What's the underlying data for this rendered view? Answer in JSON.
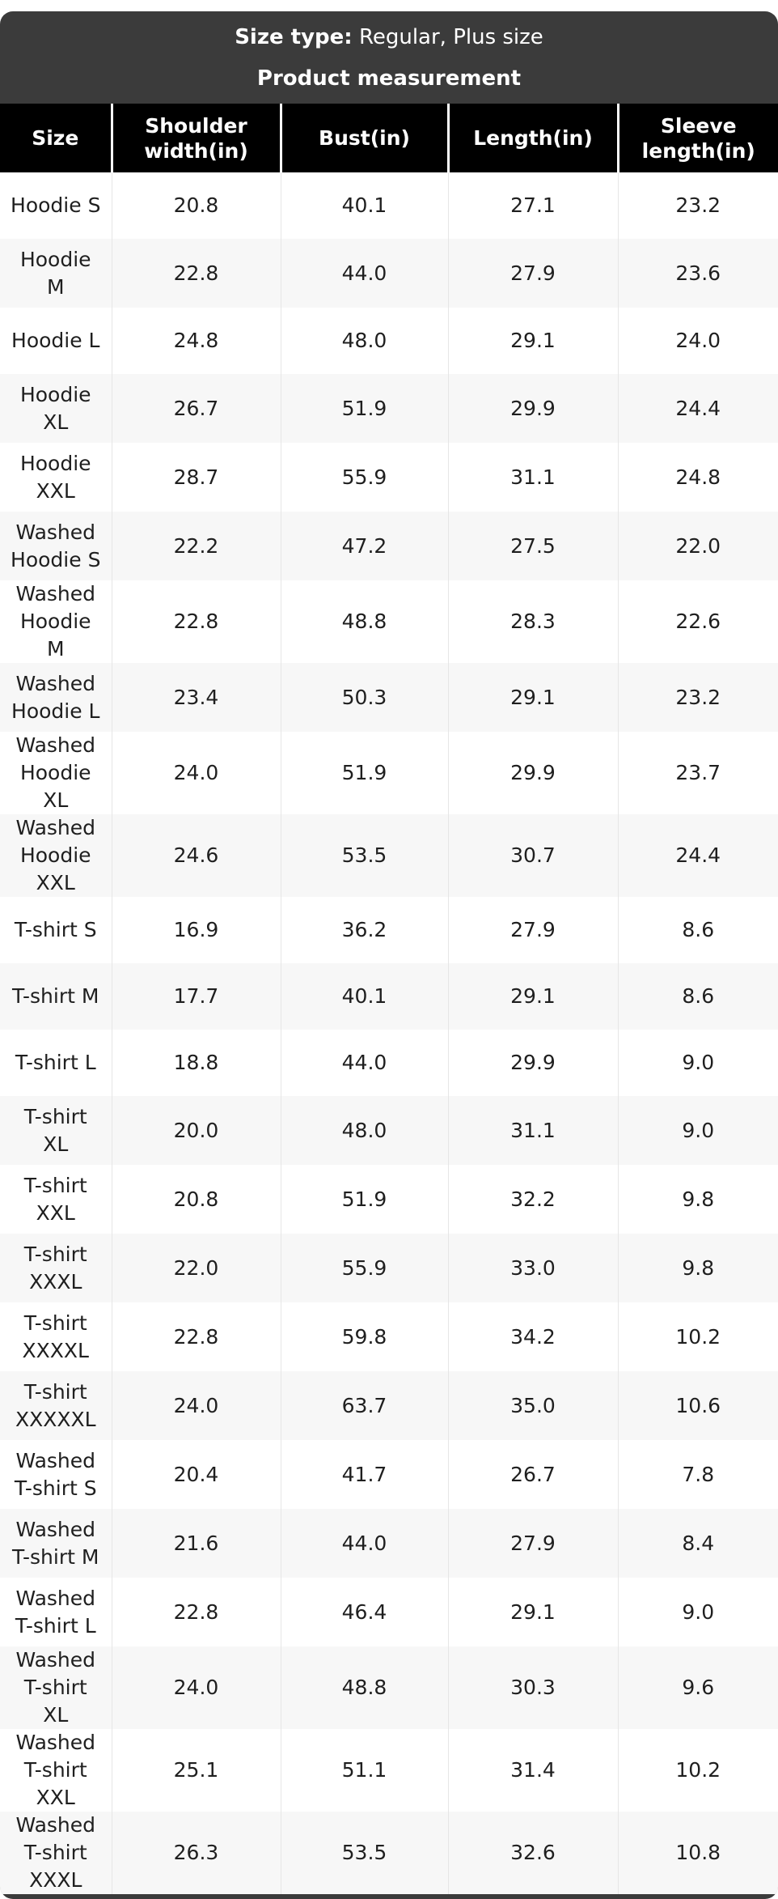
{
  "size_type": {
    "label": "Size type:",
    "value": "Regular, Plus size"
  },
  "title": "Product measurement",
  "colors": {
    "container_bg": "#3b3b3b",
    "header_bg": "#000000",
    "header_text": "#ffffff",
    "row_alt": "#f7f7f7",
    "divider": "#e6e6e6",
    "body_text": "#1f1f1f"
  },
  "table": {
    "columns": [
      "Size",
      "Shoulder\nwidth(in)",
      "Bust(in)",
      "Length(in)",
      "Sleeve\nlength(in)"
    ],
    "rows": [
      {
        "size": "Hoodie S",
        "values": [
          "20.8",
          "40.1",
          "27.1",
          "23.2"
        ]
      },
      {
        "size": "Hoodie\nM",
        "values": [
          "22.8",
          "44.0",
          "27.9",
          "23.6"
        ]
      },
      {
        "size": "Hoodie L",
        "values": [
          "24.8",
          "48.0",
          "29.1",
          "24.0"
        ]
      },
      {
        "size": "Hoodie\nXL",
        "values": [
          "26.7",
          "51.9",
          "29.9",
          "24.4"
        ]
      },
      {
        "size": "Hoodie\nXXL",
        "values": [
          "28.7",
          "55.9",
          "31.1",
          "24.8"
        ]
      },
      {
        "size": "Washed\nHoodie S",
        "values": [
          "22.2",
          "47.2",
          "27.5",
          "22.0"
        ]
      },
      {
        "size": "Washed\nHoodie\nM",
        "values": [
          "22.8",
          "48.8",
          "28.3",
          "22.6"
        ]
      },
      {
        "size": "Washed\nHoodie L",
        "values": [
          "23.4",
          "50.3",
          "29.1",
          "23.2"
        ]
      },
      {
        "size": "Washed\nHoodie\nXL",
        "values": [
          "24.0",
          "51.9",
          "29.9",
          "23.7"
        ]
      },
      {
        "size": "Washed\nHoodie\nXXL",
        "values": [
          "24.6",
          "53.5",
          "30.7",
          "24.4"
        ]
      },
      {
        "size": "T-shirt S",
        "values": [
          "16.9",
          "36.2",
          "27.9",
          "8.6"
        ]
      },
      {
        "size": "T-shirt M",
        "values": [
          "17.7",
          "40.1",
          "29.1",
          "8.6"
        ]
      },
      {
        "size": "T-shirt L",
        "values": [
          "18.8",
          "44.0",
          "29.9",
          "9.0"
        ]
      },
      {
        "size": "T-shirt\nXL",
        "values": [
          "20.0",
          "48.0",
          "31.1",
          "9.0"
        ]
      },
      {
        "size": "T-shirt\nXXL",
        "values": [
          "20.8",
          "51.9",
          "32.2",
          "9.8"
        ]
      },
      {
        "size": "T-shirt\nXXXL",
        "values": [
          "22.0",
          "55.9",
          "33.0",
          "9.8"
        ]
      },
      {
        "size": "T-shirt\nXXXXL",
        "values": [
          "22.8",
          "59.8",
          "34.2",
          "10.2"
        ]
      },
      {
        "size": "T-shirt\nXXXXXL",
        "values": [
          "24.0",
          "63.7",
          "35.0",
          "10.6"
        ]
      },
      {
        "size": "Washed\nT-shirt S",
        "values": [
          "20.4",
          "41.7",
          "26.7",
          "7.8"
        ]
      },
      {
        "size": "Washed\nT-shirt M",
        "values": [
          "21.6",
          "44.0",
          "27.9",
          "8.4"
        ]
      },
      {
        "size": "Washed\nT-shirt L",
        "values": [
          "22.8",
          "46.4",
          "29.1",
          "9.0"
        ]
      },
      {
        "size": "Washed\nT-shirt\nXL",
        "values": [
          "24.0",
          "48.8",
          "30.3",
          "9.6"
        ]
      },
      {
        "size": "Washed\nT-shirt\nXXL",
        "values": [
          "25.1",
          "51.1",
          "31.4",
          "10.2"
        ]
      },
      {
        "size": "Washed\nT-shirt\nXXXL",
        "values": [
          "26.3",
          "53.5",
          "32.6",
          "10.8"
        ]
      }
    ]
  }
}
